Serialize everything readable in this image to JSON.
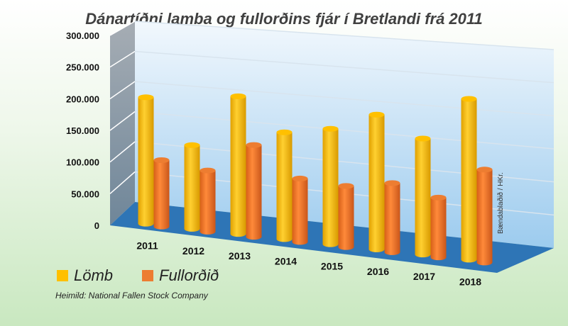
{
  "chart_data": {
    "type": "bar",
    "title": "Dánartíðni lamba og fullorðins fjár í Bretlandi frá 2011",
    "categories": [
      "2011",
      "2012",
      "2013",
      "2014",
      "2015",
      "2016",
      "2017",
      "2018"
    ],
    "series": [
      {
        "name": "Lömb",
        "color": "#ffc000",
        "values": [
          200000,
          130000,
          210000,
          160000,
          170000,
          195000,
          165000,
          225000
        ]
      },
      {
        "name": "Fullorðið",
        "color": "#ed7d31",
        "values": [
          105000,
          95000,
          140000,
          95000,
          90000,
          100000,
          85000,
          130000
        ]
      }
    ],
    "ylim": [
      0,
      300000
    ],
    "yticks": [
      "0",
      "50.000",
      "100.000",
      "150.000",
      "200.000",
      "250.000",
      "300.000"
    ],
    "style": "3d-cylinder",
    "grid": true,
    "legend": "bottom-left",
    "floor_color": "#2e75b6"
  },
  "source": "Heimild: National Fallen Stock Company",
  "credit": "Bændablaðið / HKr."
}
